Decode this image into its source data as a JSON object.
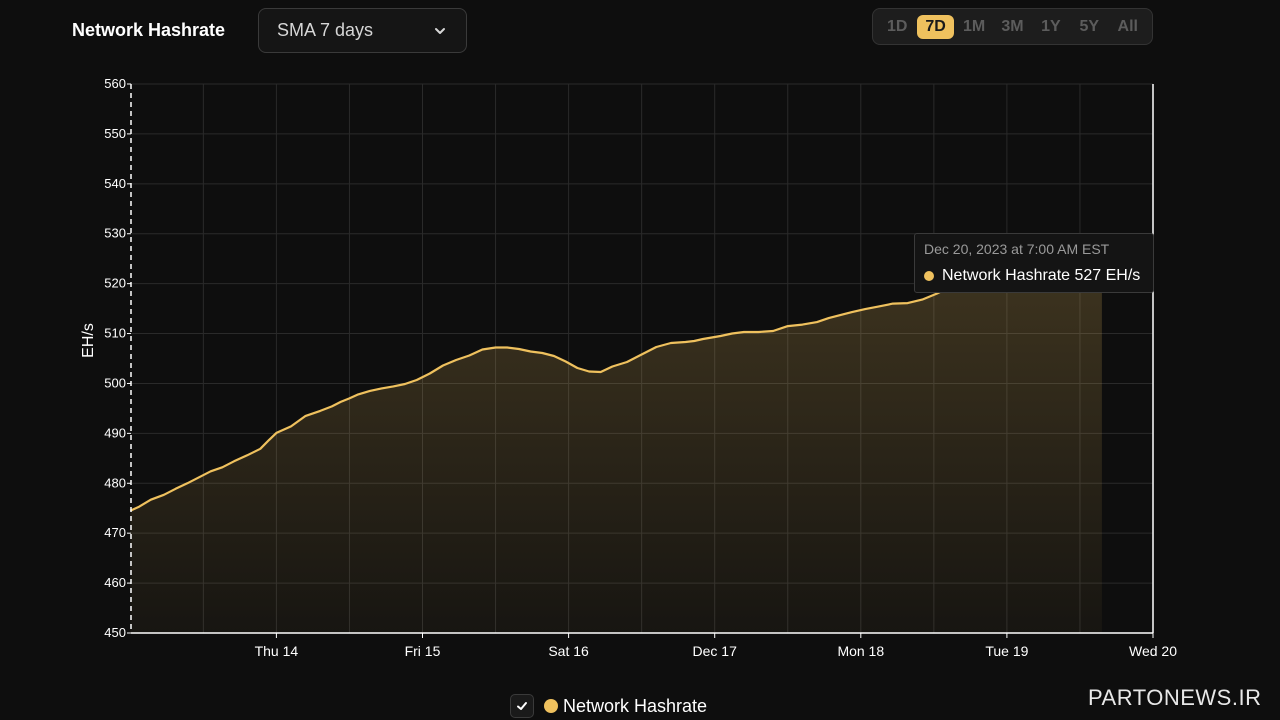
{
  "header": {
    "title": "Network Hashrate",
    "select_value": "SMA 7 days",
    "ranges": [
      "1D",
      "7D",
      "1M",
      "3M",
      "1Y",
      "5Y",
      "All"
    ],
    "active_range": "7D"
  },
  "tooltip": {
    "date": "Dec 20, 2023 at 7:00 AM EST",
    "text": "Network Hashrate 527 EH/s"
  },
  "legend": {
    "label": "Network Hashrate"
  },
  "watermark": "PARTONEWS.IR",
  "colors": {
    "accent": "#efc15e",
    "background": "#0e0e0e",
    "grid": "#2a2a2a"
  },
  "chart_data": {
    "type": "area",
    "title": "",
    "xlabel": "",
    "ylabel": "EH/s",
    "ylim": [
      450,
      560
    ],
    "yticks": [
      450,
      460,
      470,
      480,
      490,
      500,
      510,
      520,
      530,
      540,
      550,
      560
    ],
    "xlim": [
      "Dec 13 09:00",
      "Dec 20 07:00"
    ],
    "xticks": [
      {
        "label": "Thu 14",
        "day": 1
      },
      {
        "label": "Fri 15",
        "day": 2
      },
      {
        "label": "Sat 16",
        "day": 3
      },
      {
        "label": "Dec 17",
        "day": 4
      },
      {
        "label": "Mon 18",
        "day": 5
      },
      {
        "label": "Tue 19",
        "day": 6
      },
      {
        "label": "Wed 20",
        "day": 7
      }
    ],
    "x_days": [
      0,
      0.06,
      0.14,
      0.23,
      0.31,
      0.39,
      0.47,
      0.55,
      0.63,
      0.71,
      0.8,
      0.89,
      0.95,
      1.0,
      1.1,
      1.2,
      1.3,
      1.38,
      1.44,
      1.5,
      1.56,
      1.64,
      1.72,
      1.8,
      1.88,
      1.96,
      2.05,
      2.14,
      2.23,
      2.32,
      2.41,
      2.5,
      2.58,
      2.66,
      2.74,
      2.82,
      2.9,
      2.98,
      3.06,
      3.14,
      3.22,
      3.3,
      3.4,
      3.5,
      3.6,
      3.7,
      3.8,
      3.86,
      3.92,
      3.98,
      4.04,
      4.12,
      4.2,
      4.3,
      4.4,
      4.5,
      4.6,
      4.7,
      4.78,
      4.86,
      4.94,
      5.03,
      5.12,
      5.22,
      5.32,
      5.42,
      5.52,
      5.6,
      5.68,
      5.74,
      5.8,
      5.9,
      6.0,
      6.1,
      6.2,
      6.3,
      6.4,
      6.5,
      6.55,
      6.6,
      6.65
    ],
    "series": [
      {
        "name": "Network Hashrate",
        "values": [
          474.5,
          475.3,
          476.7,
          477.7,
          478.9,
          480.0,
          481.2,
          482.4,
          483.2,
          484.4,
          485.6,
          486.9,
          488.7,
          490.1,
          491.4,
          493.5,
          494.5,
          495.4,
          496.3,
          497.0,
          497.8,
          498.5,
          499.0,
          499.4,
          499.9,
          500.7,
          502.0,
          503.6,
          504.7,
          505.6,
          506.8,
          507.2,
          507.2,
          506.9,
          506.4,
          506.1,
          505.5,
          504.4,
          503.1,
          502.4,
          502.3,
          503.4,
          504.3,
          505.8,
          507.3,
          508.1,
          508.3,
          508.5,
          508.9,
          509.2,
          509.5,
          510.0,
          510.3,
          510.3,
          510.5,
          511.5,
          511.8,
          512.3,
          513.1,
          513.7,
          514.3,
          514.9,
          515.4,
          516.0,
          516.1,
          516.8,
          518.0,
          519.2,
          520.2,
          521.1,
          522.3,
          523.2,
          524.0,
          524.8,
          525.4,
          526.0,
          526.5,
          527.0,
          527.0,
          527.0,
          527.0
        ]
      }
    ],
    "grid": true,
    "legend_position": "bottom-center"
  }
}
